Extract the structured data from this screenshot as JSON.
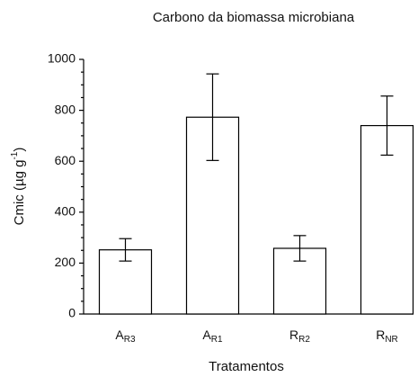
{
  "chart_data": {
    "type": "bar",
    "title": "Carbono da biomassa microbiana",
    "xlabel": "Tratamentos",
    "ylabel": {
      "text": "Cmic (µg g",
      "superscript": "-1",
      "close": ")"
    },
    "categories": [
      "AR3",
      "AR1",
      "RR2",
      "RNR"
    ],
    "values": [
      252,
      773,
      258,
      740
    ],
    "errors": [
      44,
      170,
      50,
      116
    ],
    "color": "#ffffff",
    "edgecolor": "#000000",
    "ylim": [
      0,
      1000
    ],
    "yticks": [
      0,
      200,
      400,
      600,
      800,
      1000
    ],
    "grid": false
  }
}
